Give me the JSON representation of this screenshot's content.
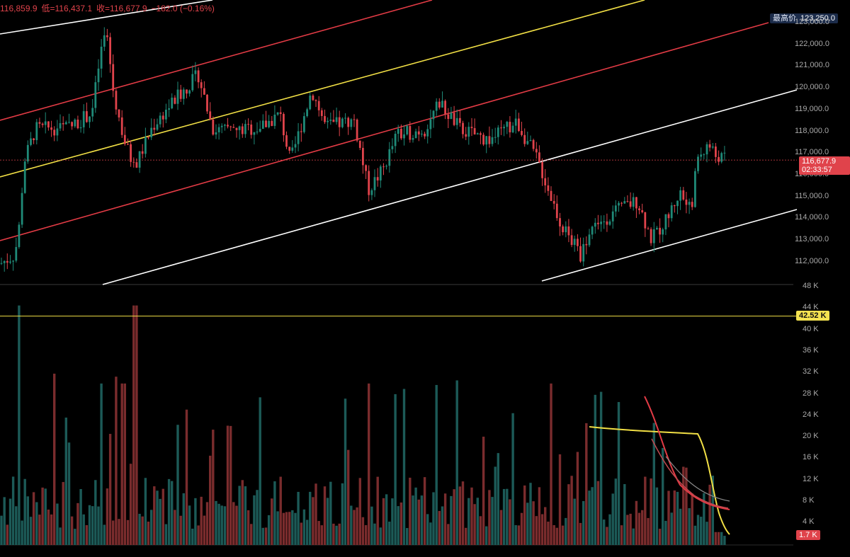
{
  "header": {
    "high": "116,859.9",
    "low_label": "低=",
    "low": "116,437.1",
    "close_label": "收=",
    "close": "116,677.9",
    "change": "−182.0 (−0.16%)"
  },
  "tags": {
    "high_label": "最高价",
    "high_value": "123,250.0",
    "last_price": "116,677.9",
    "countdown": "02:33:57",
    "volume_level": "42.52 K",
    "volume_now": "1.7 K"
  },
  "price_axis": {
    "labels": [
      "123,000.0",
      "122,000.0",
      "121,000.0",
      "120,000.0",
      "119,000.0",
      "118,000.0",
      "117,000.0",
      "116,000.0",
      "115,000.0",
      "114,000.0",
      "113,000.0",
      "112,000.0"
    ],
    "values": [
      123000,
      122000,
      121000,
      120000,
      119000,
      118000,
      117000,
      116000,
      115000,
      114000,
      113000,
      112000
    ],
    "last_price_value": 116677.9
  },
  "volume_axis": {
    "labels": [
      "48 K",
      "44 K",
      "40 K",
      "36 K",
      "32 K",
      "28 K",
      "24 K",
      "20 K",
      "16 K",
      "12 K",
      "8 K",
      "4 K"
    ],
    "values": [
      48,
      44,
      40,
      36,
      32,
      28,
      24,
      20,
      16,
      12,
      8,
      4
    ],
    "unit": "K",
    "level_value": 42.52
  },
  "colors": {
    "up": "#1f8a78",
    "down": "#e0434b",
    "up_vol": "#1c5a57",
    "down_vol": "#7a2c2d",
    "channel_white": "#ffffff",
    "channel_red": "#e23b45",
    "channel_yellow": "#f1df45"
  }
}
